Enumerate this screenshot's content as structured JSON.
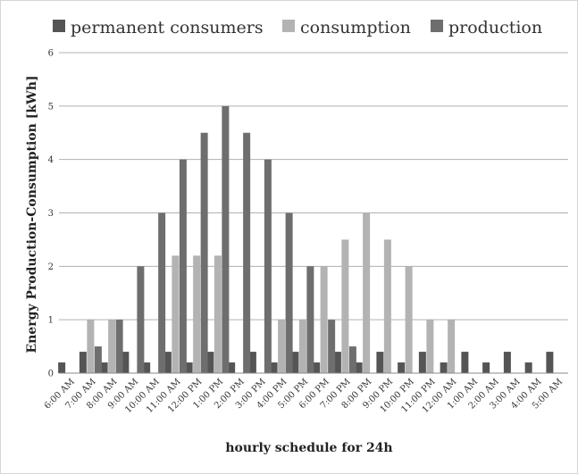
{
  "chart_data": {
    "type": "bar",
    "title": "",
    "xlabel": "hourly schedule for 24h",
    "ylabel": "Energy Production-Consumption [kWh]",
    "ylim": [
      0,
      6
    ],
    "yticks": [
      0,
      1,
      2,
      3,
      4,
      5,
      6
    ],
    "grid": true,
    "legend_position": "top",
    "categories": [
      "6:00 AM",
      "7:00 AM",
      "8:00 AM",
      "9:00 AM",
      "10:00 AM",
      "11:00 AM",
      "12:00 PM",
      "1:00 PM",
      "2:00 PM",
      "3:00 PM",
      "4:00 PM",
      "5:00 PM",
      "6:00 PM",
      "7:00 PM",
      "8:00 PM",
      "9:00 PM",
      "10:00 PM",
      "11:00 PM",
      "12:00 AM",
      "1:00 AM",
      "2:00 AM",
      "3:00 AM",
      "4:00 AM",
      "5:00 AM"
    ],
    "series": [
      {
        "name": "permanent consumers",
        "color": "#555555",
        "values": [
          0.2,
          0.4,
          0.2,
          0.4,
          0.2,
          0.4,
          0.2,
          0.4,
          0.2,
          0.4,
          0.2,
          0.4,
          0.2,
          0.4,
          0.2,
          0.4,
          0.2,
          0.4,
          0.2,
          0.4,
          0.2,
          0.4,
          0.2,
          0.4
        ]
      },
      {
        "name": "consumption",
        "color": "#b3b3b3",
        "values": [
          0,
          1,
          1,
          0,
          0,
          2.2,
          2.2,
          2.2,
          0,
          0,
          1,
          1,
          2,
          2.5,
          3,
          2.5,
          2,
          1,
          1,
          0,
          0,
          0,
          0,
          0
        ]
      },
      {
        "name": "production",
        "color": "#6e6e6e",
        "values": [
          0,
          0.5,
          1,
          2,
          3,
          4,
          4.5,
          5,
          4.5,
          4,
          3,
          2,
          1,
          0.5,
          0,
          0,
          0,
          0,
          0,
          0,
          0,
          0,
          0,
          0
        ]
      }
    ]
  }
}
